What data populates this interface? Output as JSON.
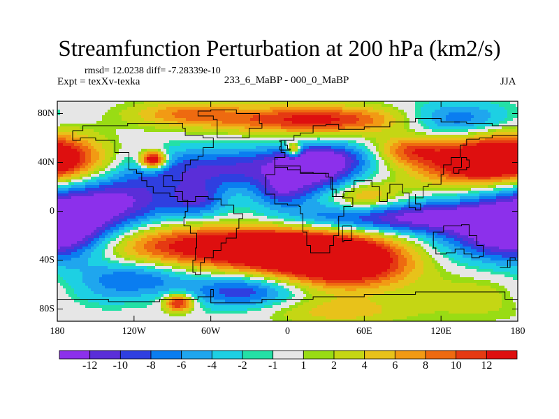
{
  "chart_data": {
    "type": "heatmap",
    "title": "Streamfunction Perturbation at 200 hPa (km2/s)",
    "stats_text": "rmsd= 12.0238 diff= -7.28339e-10",
    "experiment_label": "Expt = texXv-texka",
    "comparison_label": "233_6_MaBP - 000_0_MaBP",
    "season": "JJA",
    "lat_ticks": [
      {
        "value": 80,
        "label": "80N"
      },
      {
        "value": 40,
        "label": "40N"
      },
      {
        "value": 0,
        "label": "0"
      },
      {
        "value": -40,
        "label": "40S"
      },
      {
        "value": -80,
        "label": "80S"
      }
    ],
    "lon_ticks": [
      {
        "value": -180,
        "label": "180"
      },
      {
        "value": -120,
        "label": "120W"
      },
      {
        "value": -60,
        "label": "60W"
      },
      {
        "value": 0,
        "label": "0"
      },
      {
        "value": 60,
        "label": "60E"
      },
      {
        "value": 120,
        "label": "120E"
      },
      {
        "value": 180,
        "label": "180"
      }
    ],
    "xlim": [
      -180,
      180
    ],
    "ylim": [
      -90,
      90
    ],
    "contour_levels": [
      -12,
      -10,
      -8,
      -6,
      -4,
      -2,
      -1,
      1,
      2,
      4,
      6,
      8,
      10,
      12
    ],
    "colorbar_labels": [
      "-12",
      "-10",
      "-8",
      "-6",
      "-4",
      "-2",
      "-1",
      "1",
      "2",
      "4",
      "6",
      "8",
      "10",
      "12"
    ],
    "colors": [
      "#8c30eb",
      "#5a2ed8",
      "#2f3fe0",
      "#0a7df0",
      "#1fa6ee",
      "#1dd0e3",
      "#24e0a6",
      "#e6e6e6",
      "#99dc14",
      "#c5d614",
      "#e8c21a",
      "#f29a14",
      "#ee6a10",
      "#e53a12",
      "#de0f0f"
    ],
    "features": [
      {
        "lon": -170,
        "lat": 10,
        "amp": -9,
        "slon": 40,
        "slat": 16
      },
      {
        "lon": -120,
        "lat": 8,
        "amp": -7,
        "slon": 30,
        "slat": 14
      },
      {
        "lon": -50,
        "lat": 35,
        "amp": -10,
        "slon": 70,
        "slat": 12
      },
      {
        "lon": 20,
        "lat": 30,
        "amp": -9,
        "slon": 25,
        "slat": 12
      },
      {
        "lon": -70,
        "lat": 10,
        "amp": -8,
        "slon": 15,
        "slat": 10
      },
      {
        "lon": -5,
        "lat": 15,
        "amp": -7,
        "slon": 15,
        "slat": 8
      },
      {
        "lon": 30,
        "lat": 45,
        "amp": -8,
        "slon": 25,
        "slat": 8
      },
      {
        "lon": 130,
        "lat": 75,
        "amp": -9,
        "slon": 30,
        "slat": 10
      },
      {
        "lon": -150,
        "lat": 50,
        "amp": -5,
        "slon": 25,
        "slat": 12
      },
      {
        "lon": -175,
        "lat": -20,
        "amp": -12,
        "slon": 30,
        "slat": 16
      },
      {
        "lon": 160,
        "lat": -20,
        "amp": -8,
        "slon": 40,
        "slat": 15
      },
      {
        "lon": 80,
        "lat": -5,
        "amp": -13,
        "slon": 60,
        "slat": 9
      },
      {
        "lon": -120,
        "lat": -55,
        "amp": -8,
        "slon": 30,
        "slat": 10
      },
      {
        "lon": -35,
        "lat": -65,
        "amp": -10,
        "slon": 30,
        "slat": 10
      },
      {
        "lon": -160,
        "lat": -70,
        "amp": -5,
        "slon": 30,
        "slat": 10
      },
      {
        "lon": -175,
        "lat": 45,
        "amp": 14,
        "slon": 35,
        "slat": 14
      },
      {
        "lon": 150,
        "lat": 38,
        "amp": 14,
        "slon": 40,
        "slat": 14
      },
      {
        "lon": 20,
        "lat": 75,
        "amp": 13,
        "slon": 55,
        "slat": 8
      },
      {
        "lon": -80,
        "lat": 80,
        "amp": 7,
        "slon": 30,
        "slat": 7
      },
      {
        "lon": 95,
        "lat": 50,
        "amp": 8,
        "slon": 18,
        "slat": 8
      },
      {
        "lon": -60,
        "lat": -28,
        "amp": 13,
        "slon": 75,
        "slat": 12
      },
      {
        "lon": 10,
        "lat": -35,
        "amp": 14,
        "slon": 45,
        "slat": 14
      },
      {
        "lon": 50,
        "lat": -45,
        "amp": 12,
        "slon": 35,
        "slat": 14
      },
      {
        "lon": 60,
        "lat": 10,
        "amp": 8,
        "slon": 20,
        "slat": 10
      },
      {
        "lon": 170,
        "lat": -70,
        "amp": 5,
        "slon": 40,
        "slat": 12
      },
      {
        "lon": 40,
        "lat": -82,
        "amp": 5,
        "slon": 40,
        "slat": 8
      },
      {
        "lon": -105,
        "lat": 42,
        "amp": 20,
        "slon": 7,
        "slat": 5
      },
      {
        "lon": -85,
        "lat": -75,
        "amp": 14,
        "slon": 8,
        "slat": 5
      },
      {
        "lon": 5,
        "lat": 50,
        "amp": 13,
        "slon": 4,
        "slat": 4
      }
    ]
  }
}
